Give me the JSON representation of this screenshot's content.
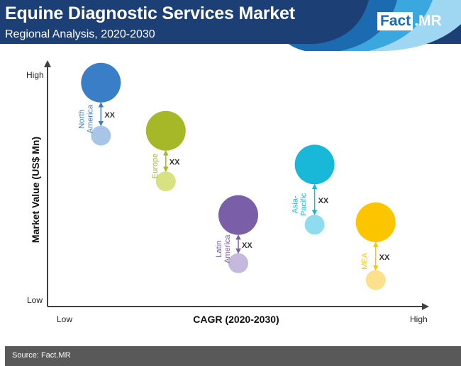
{
  "header": {
    "title": "Equine Diagnostic Services Market",
    "subtitle": "Regional Analysis, 2020-2030",
    "logo_left": "Fact",
    "logo_right": ".MR",
    "colors": {
      "dark": "#1c3f75",
      "mid": "#1c6bb0",
      "light": "#3aa8de",
      "pale": "#9fd6f2"
    }
  },
  "chart_data": {
    "type": "scatter",
    "xlabel": "CAGR (2020-2030)",
    "ylabel": "Market Value (US$ Mn)",
    "x_tick_labels": {
      "low": "Low",
      "high": "High"
    },
    "y_tick_labels": {
      "low": "Low",
      "high": "High"
    },
    "grid": false,
    "legend": "none",
    "change_label": "XX",
    "series": [
      {
        "name": "North America",
        "label_lines": [
          "North",
          "America"
        ],
        "color": "#3b7ec8",
        "light_color": "#a7c6e6",
        "x": 0.14,
        "y": 0.93,
        "y_to": 0.71
      },
      {
        "name": "Europe",
        "label_lines": [
          "Europe"
        ],
        "color": "#a6b828",
        "light_color": "#d8e282",
        "x": 0.31,
        "y": 0.73,
        "y_to": 0.52
      },
      {
        "name": "Latin America",
        "label_lines": [
          "Latin",
          "America"
        ],
        "color": "#7a5ea8",
        "light_color": "#c4b8dc",
        "x": 0.5,
        "y": 0.38,
        "y_to": 0.18
      },
      {
        "name": "Asia-Pacific",
        "label_lines": [
          "Asia-",
          "Pacific"
        ],
        "color": "#1ab8d8",
        "light_color": "#8fdcef",
        "x": 0.7,
        "y": 0.59,
        "y_to": 0.34
      },
      {
        "name": "MEA",
        "label_lines": [
          "MEA"
        ],
        "color": "#fbc600",
        "light_color": "#fde08c",
        "x": 0.86,
        "y": 0.35,
        "y_to": 0.11
      }
    ]
  },
  "footer": {
    "source": "Source: Fact.MR"
  }
}
